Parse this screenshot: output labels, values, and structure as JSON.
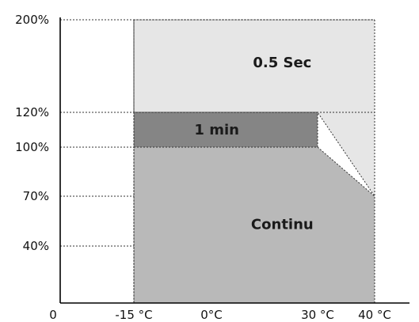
{
  "chart_data": {
    "type": "area",
    "title": "",
    "xlabel": "",
    "ylabel": "",
    "origin_label": "0",
    "x_ticks": [
      {
        "value": -15,
        "label": "-15 °C"
      },
      {
        "value": 0,
        "label": "0°C"
      },
      {
        "value": 30,
        "label": "30 °C"
      },
      {
        "value": 40,
        "label": "40 °C"
      }
    ],
    "y_ticks": [
      {
        "value": 200,
        "label": "200%"
      },
      {
        "value": 120,
        "label": "120%"
      },
      {
        "value": 100,
        "label": "100%"
      },
      {
        "value": 70,
        "label": "70%"
      },
      {
        "value": 40,
        "label": "40%"
      }
    ],
    "regions": [
      {
        "name": "0.5 Sec",
        "color": "#e6e6e6",
        "points": [
          [
            -15,
            200
          ],
          [
            40,
            200
          ],
          [
            40,
            70
          ],
          [
            30,
            120
          ],
          [
            -15,
            120
          ]
        ]
      },
      {
        "name": "Continu",
        "color": "#b9b9b9",
        "points": [
          [
            -15,
            0
          ],
          [
            40,
            0
          ],
          [
            40,
            70
          ],
          [
            30,
            100
          ],
          [
            -15,
            100
          ]
        ]
      },
      {
        "name": "1 min",
        "color": "#858585",
        "points": [
          [
            -15,
            100
          ],
          [
            30,
            100
          ],
          [
            30,
            120
          ],
          [
            -15,
            120
          ]
        ]
      }
    ],
    "region_label_positions": [
      {
        "name": "0.5 Sec",
        "x": 20,
        "y": 163
      },
      {
        "name": "1 min",
        "x": 1.5,
        "y": 110
      },
      {
        "name": "Continu",
        "x": 20,
        "y": 53
      }
    ],
    "grid": false
  }
}
